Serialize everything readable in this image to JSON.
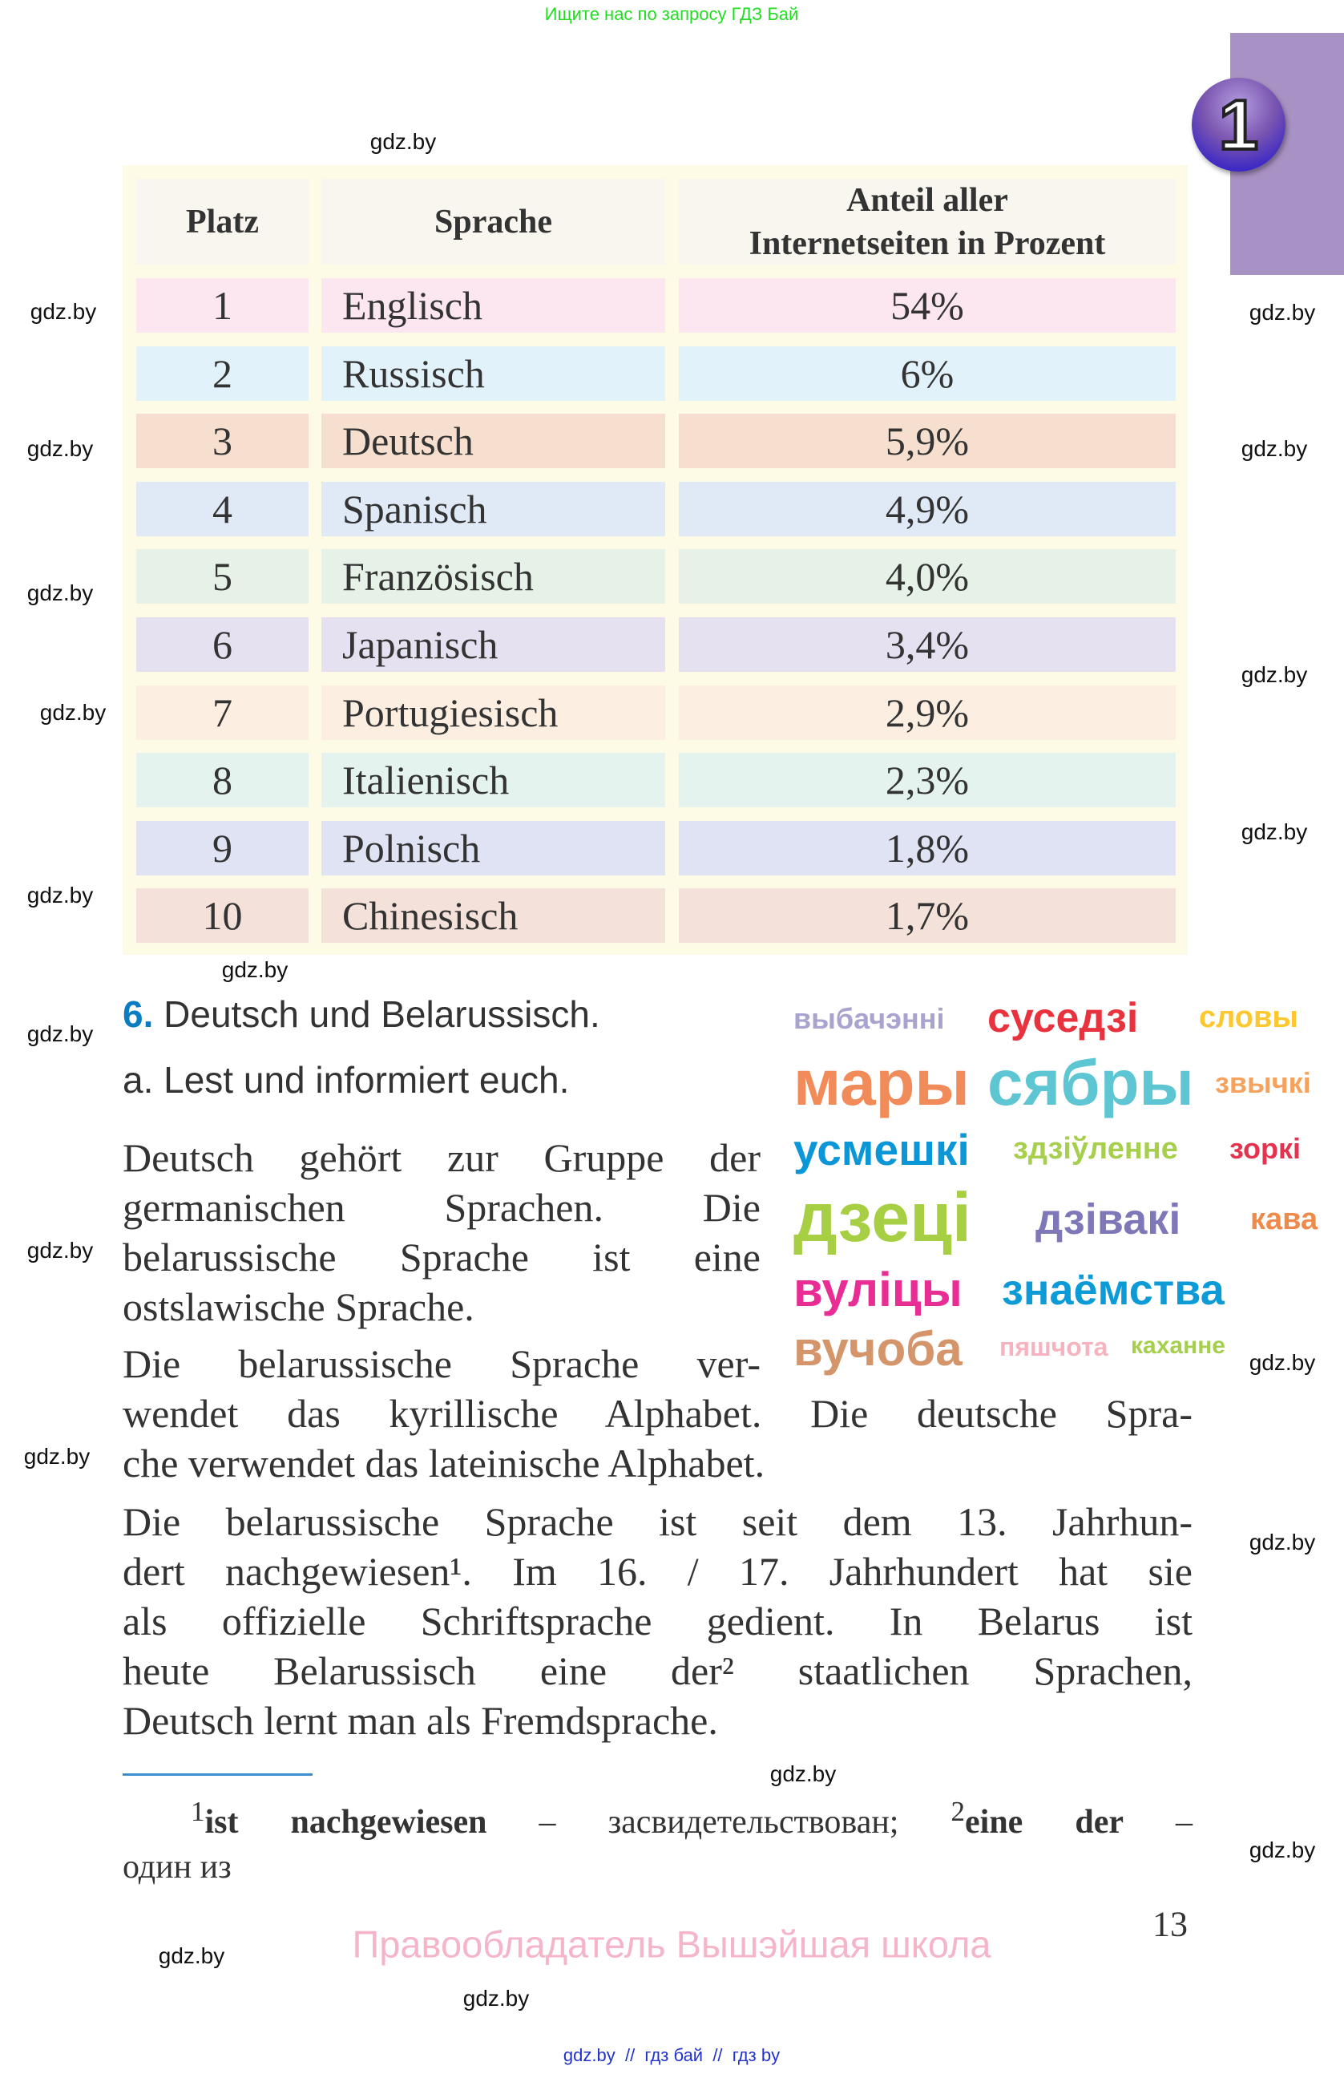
{
  "top_note": "Ищите нас по запросу ГДЗ Бай",
  "chapter_badge": "1",
  "colors": {
    "tab": "#a891c4",
    "accent_blue": "#0a7cc2",
    "table_bg": "#fdfbe6",
    "copyright_pink": "#f5b5c8",
    "top_note_green": "#22dd22"
  },
  "table": {
    "headers": [
      "Platz",
      "Sprache",
      "Anteil aller Internetseiten in Prozent"
    ],
    "header_line1": "Anteil aller",
    "header_line2": "Internetseiten in Prozent",
    "rows": [
      {
        "platz": "1",
        "sprache": "Englisch",
        "anteil": "54%",
        "color": "#fce6ef"
      },
      {
        "platz": "2",
        "sprache": "Russisch",
        "anteil": "6%",
        "color": "#e2f2fb"
      },
      {
        "platz": "3",
        "sprache": "Deutsch",
        "anteil": "5,9%",
        "color": "#f6dfcf"
      },
      {
        "platz": "4",
        "sprache": "Spanisch",
        "anteil": "4,9%",
        "color": "#e0e9f6"
      },
      {
        "platz": "5",
        "sprache": "Französisch",
        "anteil": "4,0%",
        "color": "#e6f2e8"
      },
      {
        "platz": "6",
        "sprache": "Japanisch",
        "anteil": "3,4%",
        "color": "#e6e1f1"
      },
      {
        "platz": "7",
        "sprache": "Portugiesisch",
        "anteil": "2,9%",
        "color": "#fdeee2"
      },
      {
        "platz": "8",
        "sprache": "Italienisch",
        "anteil": "2,3%",
        "color": "#e4f3ee"
      },
      {
        "platz": "9",
        "sprache": "Polnisch",
        "anteil": "1,8%",
        "color": "#e0e3f4"
      },
      {
        "platz": "10",
        "sprache": "Chinesisch",
        "anteil": "1,7%",
        "color": "#f4e2da"
      }
    ]
  },
  "exercise": {
    "number": "6.",
    "title": "Deutsch und Belarussisch.",
    "task": "a. Lest und informiert euch."
  },
  "paragraphs": [
    [
      "Deutsch gehört zur Gruppe der",
      "germanischen Sprachen. Die",
      "belarussische Sprache ist eine",
      "ostslawische Sprache."
    ],
    [
      "Die belarussische Sprache ver-",
      "wendet das kyrillische Alphabet. Die deutsche Spra-",
      "che verwendet das lateinische Alphabet."
    ],
    [
      "Die belarussische Sprache ist seit dem 13. Jahrhun-",
      "dert nachgewiesen¹. Im 16. / 17. Jahrhundert hat sie",
      "als offizielle Schriftsprache gedient. In Belarus ist",
      "heute Belarussisch eine der² staatlichen Sprachen,",
      "Deutsch lernt man als Fremdsprache."
    ]
  ],
  "word_cloud": [
    {
      "text": "выбачэнні",
      "color": "#a9a3d0"
    },
    {
      "text": "суседзі",
      "color": "#e8323e"
    },
    {
      "text": "словы",
      "color": "#fdc82f"
    },
    {
      "text": "мары",
      "color": "#f28b5a"
    },
    {
      "text": "здзіўленне",
      "color": "#a5cf4c"
    },
    {
      "text": "пяшчота",
      "color": "#f6b3bf"
    },
    {
      "text": "сябры",
      "color": "#5ec6d2"
    },
    {
      "text": "усмешкі",
      "color": "#0b96d8"
    },
    {
      "text": "звычкі",
      "color": "#f6a25c"
    },
    {
      "text": "дзівакі",
      "color": "#7f78b8"
    },
    {
      "text": "дзеці",
      "color": "#a7cf44"
    },
    {
      "text": "вуліцы",
      "color": "#e82e95"
    },
    {
      "text": "кава",
      "color": "#f08a4b"
    },
    {
      "text": "зоркі",
      "color": "#e5324f"
    },
    {
      "text": "знаёмства",
      "color": "#0d9bd8"
    },
    {
      "text": "каханне",
      "color": "#a5cf4c"
    },
    {
      "text": "вучоба",
      "color": "#d4956a"
    }
  ],
  "footnotes": {
    "n1": "1",
    "term1": "ist nachgewiesen",
    "trans1": "– засвидетельствован;",
    "n2": "2",
    "term2": "eine der",
    "trans2": "– один из"
  },
  "page_number": "13",
  "copyright": "Правообладатель Вышэйшая школа",
  "watermark": "gdz.by",
  "bottom_links": "gdz.by  //  гдз бай  //  гдз by"
}
